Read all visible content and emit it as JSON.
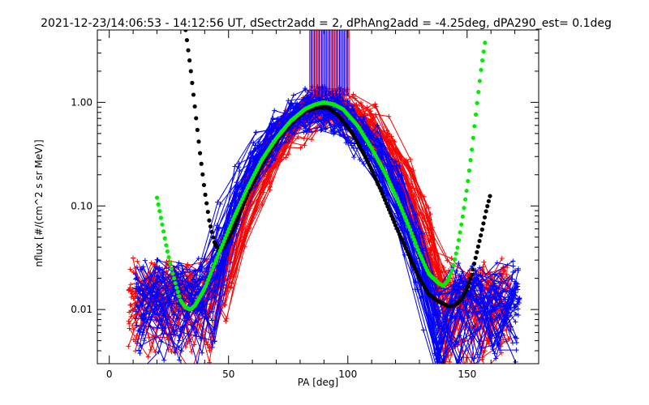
{
  "chart_data": {
    "type": "scatter",
    "title": "2021-12-23/14:06:53 - 14:12:56 UT, dSectr2add = 2, dPhAng2add = -4.25deg, dPA290_est=   0.1deg",
    "xlabel": "PA [deg]",
    "ylabel": "nflux [#/(cm^2 s sr MeV)]",
    "xlim": [
      -5,
      180
    ],
    "ylim": [
      0.003,
      5
    ],
    "yscale": "log",
    "x_ticks": [
      0,
      50,
      100,
      150
    ],
    "x_tick_labels": [
      "0",
      "50",
      "100",
      "150"
    ],
    "y_ticks": [
      0.01,
      0.1,
      1.0
    ],
    "y_tick_labels": [
      "0.01",
      "0.10",
      "1.00"
    ],
    "colors": {
      "red": "#ff0000",
      "blue": "#0000ff",
      "green": "#00ee00",
      "black": "#000000"
    },
    "fit_curves": [
      {
        "name": "black fit",
        "color": "black",
        "x": [
          32,
          34,
          36,
          38,
          40,
          42,
          44,
          46,
          48,
          52,
          58,
          64,
          70,
          76,
          82,
          88,
          92,
          96,
          102,
          108,
          114,
          120,
          126,
          130,
          134,
          138,
          142,
          144,
          146,
          148,
          150,
          152,
          154,
          156,
          158,
          160
        ],
        "y": [
          5.0,
          2.2,
          0.85,
          0.33,
          0.14,
          0.07,
          0.045,
          0.037,
          0.04,
          0.06,
          0.13,
          0.25,
          0.42,
          0.62,
          0.82,
          0.9,
          0.88,
          0.75,
          0.5,
          0.28,
          0.14,
          0.065,
          0.032,
          0.02,
          0.014,
          0.012,
          0.0108,
          0.0108,
          0.0115,
          0.013,
          0.016,
          0.022,
          0.035,
          0.055,
          0.09,
          0.135
        ]
      },
      {
        "name": "green fit",
        "color": "green",
        "x": [
          20,
          22,
          24,
          26,
          28,
          30,
          32,
          34,
          36,
          40,
          46,
          52,
          58,
          64,
          70,
          76,
          82,
          86,
          90,
          94,
          98,
          104,
          110,
          116,
          122,
          126,
          130,
          134,
          138,
          140,
          142,
          144,
          146,
          148,
          150,
          152,
          154,
          156,
          158
        ],
        "y": [
          0.12,
          0.07,
          0.04,
          0.025,
          0.017,
          0.012,
          0.0105,
          0.01,
          0.011,
          0.016,
          0.035,
          0.075,
          0.15,
          0.28,
          0.45,
          0.66,
          0.86,
          0.95,
          1.0,
          0.96,
          0.86,
          0.6,
          0.36,
          0.2,
          0.1,
          0.06,
          0.035,
          0.022,
          0.018,
          0.017,
          0.019,
          0.025,
          0.04,
          0.075,
          0.15,
          0.35,
          0.9,
          2.2,
          4.5
        ]
      }
    ]
  }
}
